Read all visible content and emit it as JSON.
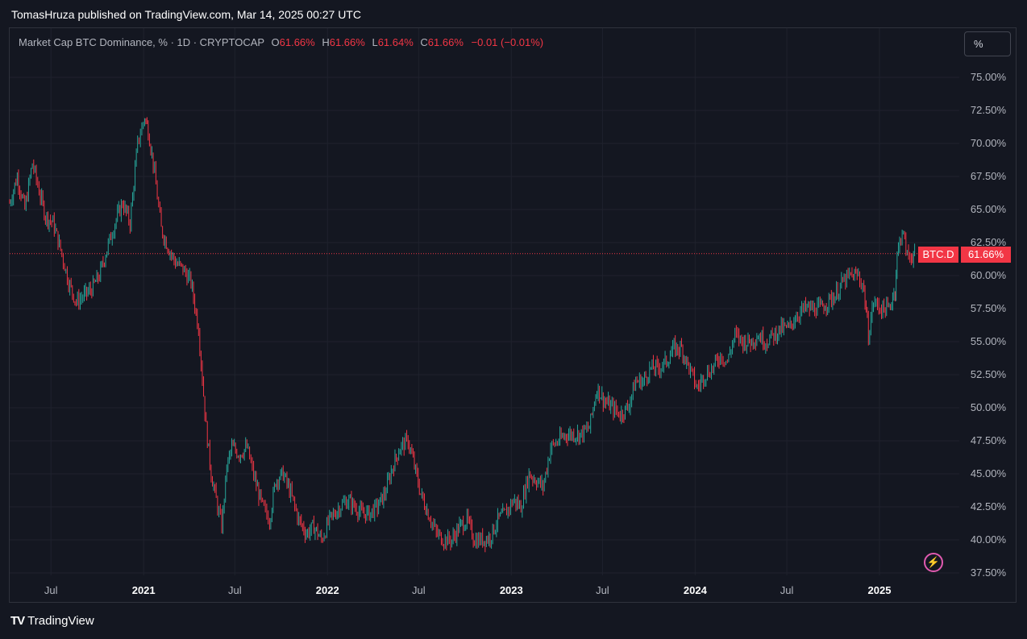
{
  "header": {
    "published": "TomasHruza published on TradingView.com, Mar 14, 2025 00:27 UTC"
  },
  "legend": {
    "name": "Market Cap BTC Dominance, % · 1D · CRYPTOCAP",
    "o_label": "O",
    "o_value": "61.66%",
    "h_label": "H",
    "h_value": "61.66%",
    "l_label": "L",
    "l_value": "61.64%",
    "c_label": "C",
    "c_value": "61.66%",
    "change": "−0.01 (−0.01%)"
  },
  "unit_button": "%",
  "price_tag": {
    "symbol": "BTC.D",
    "value": "61.66%"
  },
  "footer": {
    "brand": "TradingView",
    "logo": "TV"
  },
  "colors": {
    "up": "#26a69a",
    "down": "#f23645",
    "background": "#141721",
    "grid": "#1f222d"
  },
  "chart_data": {
    "type": "line",
    "title": "",
    "xlabel": "",
    "ylabel": "",
    "y_tick_labels": [
      "37.50%",
      "40.00%",
      "42.50%",
      "45.00%",
      "47.50%",
      "50.00%",
      "52.50%",
      "55.00%",
      "57.50%",
      "60.00%",
      "62.50%",
      "65.00%",
      "67.50%",
      "70.00%",
      "72.50%",
      "75.00%"
    ],
    "y_ticks": [
      37.5,
      40,
      42.5,
      45,
      47.5,
      50,
      52.5,
      55,
      57.5,
      60,
      62.5,
      65,
      67.5,
      70,
      72.5,
      75
    ],
    "ylim": [
      37.3,
      77.0
    ],
    "xlim": [
      "2020-04-10",
      "2025-03-14"
    ],
    "x_ticks": [
      {
        "date": "2020-07-01",
        "label": "Jul",
        "bold": false
      },
      {
        "date": "2021-01-01",
        "label": "2021",
        "bold": true
      },
      {
        "date": "2021-07-01",
        "label": "Jul",
        "bold": false
      },
      {
        "date": "2022-01-01",
        "label": "2022",
        "bold": true
      },
      {
        "date": "2022-07-01",
        "label": "Jul",
        "bold": false
      },
      {
        "date": "2023-01-01",
        "label": "2023",
        "bold": true
      },
      {
        "date": "2023-07-01",
        "label": "Jul",
        "bold": false
      },
      {
        "date": "2024-01-01",
        "label": "2024",
        "bold": true
      },
      {
        "date": "2024-07-01",
        "label": "Jul",
        "bold": false
      },
      {
        "date": "2025-01-01",
        "label": "2025",
        "bold": true
      }
    ],
    "last_value": 61.66,
    "series": [
      {
        "x": [
          "2020-04-10",
          "2020-04-25",
          "2020-05-10",
          "2020-05-25",
          "2020-06-10",
          "2020-06-20",
          "2020-07-05",
          "2020-07-20",
          "2020-08-05",
          "2020-08-20",
          "2020-09-05",
          "2020-09-20",
          "2020-10-05",
          "2020-10-20",
          "2020-11-05",
          "2020-11-20",
          "2020-12-05",
          "2020-12-20",
          "2021-01-03",
          "2021-01-10",
          "2021-01-20",
          "2021-02-05",
          "2021-02-20",
          "2021-03-05",
          "2021-03-20",
          "2021-04-05",
          "2021-04-20",
          "2021-05-05",
          "2021-05-15",
          "2021-05-25",
          "2021-06-05",
          "2021-06-15",
          "2021-06-25",
          "2021-07-10",
          "2021-07-25",
          "2021-08-10",
          "2021-08-25",
          "2021-09-08",
          "2021-09-20",
          "2021-10-05",
          "2021-10-20",
          "2021-11-05",
          "2021-11-20",
          "2021-12-05",
          "2021-12-20",
          "2022-01-05",
          "2022-01-25",
          "2022-02-10",
          "2022-02-25",
          "2022-03-10",
          "2022-03-25",
          "2022-04-10",
          "2022-04-25",
          "2022-05-10",
          "2022-05-25",
          "2022-06-10",
          "2022-06-20",
          "2022-07-05",
          "2022-07-20",
          "2022-08-05",
          "2022-08-20",
          "2022-09-05",
          "2022-09-20",
          "2022-10-05",
          "2022-10-20",
          "2022-11-05",
          "2022-11-20",
          "2022-12-05",
          "2022-12-20",
          "2023-01-05",
          "2023-01-20",
          "2023-02-05",
          "2023-02-20",
          "2023-03-05",
          "2023-03-20",
          "2023-04-05",
          "2023-04-20",
          "2023-05-05",
          "2023-05-20",
          "2023-06-05",
          "2023-06-20",
          "2023-07-05",
          "2023-07-20",
          "2023-08-05",
          "2023-08-20",
          "2023-09-05",
          "2023-09-20",
          "2023-10-05",
          "2023-10-20",
          "2023-11-05",
          "2023-11-20",
          "2023-12-05",
          "2023-12-20",
          "2024-01-05",
          "2024-01-20",
          "2024-02-05",
          "2024-02-20",
          "2024-03-05",
          "2024-03-20",
          "2024-04-05",
          "2024-04-20",
          "2024-05-05",
          "2024-05-20",
          "2024-06-05",
          "2024-06-20",
          "2024-07-05",
          "2024-07-20",
          "2024-08-05",
          "2024-08-20",
          "2024-09-05",
          "2024-09-20",
          "2024-10-05",
          "2024-10-20",
          "2024-11-05",
          "2024-11-20",
          "2024-12-01",
          "2024-12-10",
          "2024-12-20",
          "2025-01-05",
          "2025-01-20",
          "2025-02-01",
          "2025-02-05",
          "2025-02-15",
          "2025-02-25",
          "2025-03-05",
          "2025-03-14"
        ],
        "values": [
          65.5,
          67.5,
          65.0,
          68.5,
          66.0,
          64.5,
          64.0,
          62.0,
          59.5,
          58.0,
          58.5,
          59.0,
          60.0,
          62.0,
          64.0,
          65.5,
          64.0,
          70.0,
          72.0,
          71.0,
          68.5,
          63.5,
          62.0,
          61.0,
          60.5,
          59.5,
          56.0,
          48.5,
          45.0,
          43.0,
          41.0,
          45.5,
          47.0,
          46.5,
          47.0,
          44.5,
          42.5,
          41.5,
          44.5,
          45.0,
          43.5,
          41.5,
          40.5,
          41.0,
          40.0,
          41.5,
          42.5,
          43.0,
          42.5,
          42.0,
          42.0,
          42.5,
          43.5,
          45.5,
          47.0,
          47.5,
          46.0,
          43.5,
          42.0,
          40.5,
          40.0,
          40.0,
          41.0,
          41.5,
          40.0,
          40.0,
          40.2,
          41.5,
          42.0,
          43.0,
          42.5,
          45.0,
          44.5,
          44.0,
          47.0,
          47.5,
          48.0,
          48.0,
          48.0,
          48.5,
          51.5,
          50.5,
          50.0,
          49.5,
          50.0,
          52.0,
          52.0,
          53.0,
          53.0,
          53.5,
          54.5,
          54.5,
          53.0,
          51.5,
          52.5,
          53.0,
          54.0,
          53.5,
          55.5,
          55.0,
          55.0,
          55.5,
          55.0,
          55.5,
          56.0,
          56.0,
          57.0,
          57.5,
          57.5,
          57.5,
          58.0,
          58.5,
          59.5,
          60.0,
          60.0,
          59.0,
          55.5,
          58.0,
          57.5,
          57.5,
          59.0,
          61.5,
          63.5,
          61.5,
          61.5,
          61.66
        ]
      }
    ]
  }
}
